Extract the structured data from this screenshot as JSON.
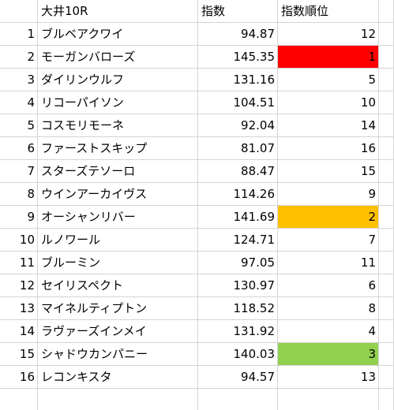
{
  "sheet": {
    "header": {
      "row_label": "",
      "race": "大井10R",
      "index_label": "指数",
      "rank_label": "指数順位"
    },
    "rows": [
      {
        "no": "1",
        "name": "ブルベアクワイ",
        "index": "94.87",
        "rank": "12",
        "highlight": ""
      },
      {
        "no": "2",
        "name": "モーガンバローズ",
        "index": "145.35",
        "rank": "1",
        "highlight": "#ff0000"
      },
      {
        "no": "3",
        "name": "ダイリンウルフ",
        "index": "131.16",
        "rank": "5",
        "highlight": ""
      },
      {
        "no": "4",
        "name": "リコーパイソン",
        "index": "104.51",
        "rank": "10",
        "highlight": ""
      },
      {
        "no": "5",
        "name": "コスモリモーネ",
        "index": "92.04",
        "rank": "14",
        "highlight": ""
      },
      {
        "no": "6",
        "name": "ファーストスキップ",
        "index": "81.07",
        "rank": "16",
        "highlight": ""
      },
      {
        "no": "7",
        "name": "スターズテソーロ",
        "index": "88.47",
        "rank": "15",
        "highlight": ""
      },
      {
        "no": "8",
        "name": "ウインアーカイヴス",
        "index": "114.26",
        "rank": "9",
        "highlight": ""
      },
      {
        "no": "9",
        "name": "オーシャンリバー",
        "index": "141.69",
        "rank": "2",
        "highlight": "#ffc000"
      },
      {
        "no": "10",
        "name": "ルノワール",
        "index": "124.71",
        "rank": "7",
        "highlight": ""
      },
      {
        "no": "11",
        "name": "ブルーミン",
        "index": "97.05",
        "rank": "11",
        "highlight": ""
      },
      {
        "no": "12",
        "name": "セイリスペクト",
        "index": "130.97",
        "rank": "6",
        "highlight": ""
      },
      {
        "no": "13",
        "name": "マイネルティプトン",
        "index": "118.52",
        "rank": "8",
        "highlight": ""
      },
      {
        "no": "14",
        "name": "ラヴァーズインメイ",
        "index": "131.92",
        "rank": "4",
        "highlight": ""
      },
      {
        "no": "15",
        "name": "シャドウカンパニー",
        "index": "140.03",
        "rank": "3",
        "highlight": "#92d050"
      },
      {
        "no": "16",
        "name": "レコンキスタ",
        "index": "94.57",
        "rank": "13",
        "highlight": ""
      }
    ]
  }
}
